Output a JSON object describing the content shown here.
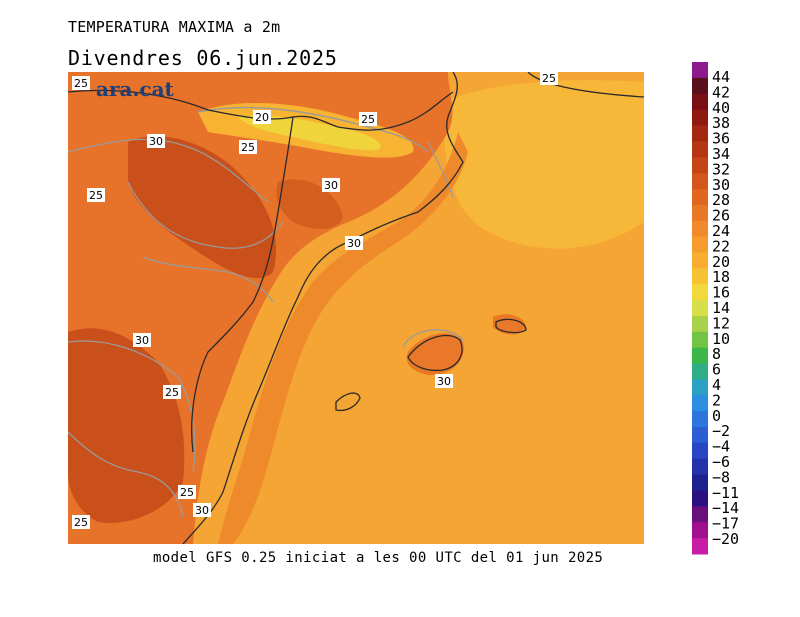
{
  "header": {
    "variable": "TEMPERATURA MAXIMA a 2m",
    "date": "Divendres  06.jun.2025"
  },
  "footer": {
    "model": "model GFS 0.25 iniciat a les 00 UTC del 01 jun 2025"
  },
  "logo": "ara.cat",
  "legend": {
    "labels": [
      "44",
      "42",
      "40",
      "38",
      "36",
      "34",
      "32",
      "30",
      "28",
      "26",
      "24",
      "22",
      "20",
      "18",
      "16",
      "14",
      "12",
      "10",
      "8",
      "6",
      "4",
      "2",
      "0",
      "−2",
      "−4",
      "−6",
      "−8",
      "−11",
      "−14",
      "−17",
      "−20"
    ],
    "colors": [
      "#8c1a8c",
      "#5a0f1c",
      "#7a0f14",
      "#8e1a10",
      "#a3280f",
      "#b43512",
      "#c44516",
      "#d4561a",
      "#e0661e",
      "#e97824",
      "#f08a2a",
      "#f59c2c",
      "#f7ae30",
      "#f5c232",
      "#f2d83a",
      "#d7e04a",
      "#a8d24a",
      "#72c444",
      "#3cb84a",
      "#2eae86",
      "#2aa0c4",
      "#2b8ee0",
      "#2a76dc",
      "#2a5ed2",
      "#2746c2",
      "#2332aa",
      "#1e2090",
      "#2a1080",
      "#6a107e",
      "#a0108e",
      "#c81ca8"
    ]
  },
  "contour_labels": [
    {
      "text": "25"
    },
    {
      "text": "20"
    },
    {
      "text": "25"
    },
    {
      "text": "30"
    },
    {
      "text": "25"
    },
    {
      "text": "25"
    },
    {
      "text": "30"
    },
    {
      "text": "25"
    },
    {
      "text": "30"
    },
    {
      "text": "30"
    },
    {
      "text": "25"
    },
    {
      "text": "30"
    },
    {
      "text": "25"
    },
    {
      "text": "30"
    },
    {
      "text": "25"
    }
  ]
}
